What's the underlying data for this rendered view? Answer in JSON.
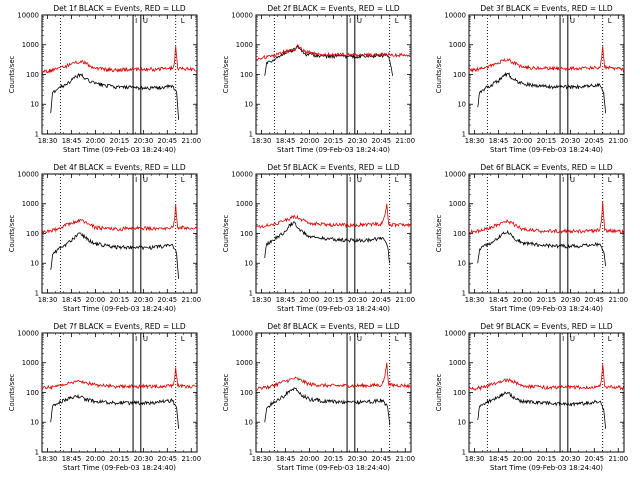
{
  "chart_data": [
    {
      "type": "line",
      "title": "Det 1f BLACK = Events, RED = LLD",
      "xlabel": "Start Time (09-Feb-03 18:24:40)",
      "ylabel": "Counts/sec",
      "y_scale": "log",
      "ylim": [
        1,
        10000
      ],
      "xlim": [
        "18:25",
        "21:05"
      ],
      "x_tick_labels": [
        "18:30",
        "18:45",
        "20:00",
        "20:15",
        "20:30",
        "20:45",
        "21:00"
      ],
      "y_tick_labels": [
        "1",
        "10",
        "100",
        "1000",
        "10000"
      ],
      "dotted_lines": [
        "18:44",
        "20:43"
      ],
      "solid_lines": [
        "19:59",
        "20:07"
      ],
      "top_markers": [
        "I",
        "U",
        "L"
      ],
      "series": [
        {
          "color": "#000000",
          "x": [
            "18:34",
            "18:36",
            "18:42",
            "18:48",
            "18:55",
            "19:00",
            "19:05",
            "19:10",
            "19:20",
            "19:40",
            "20:00",
            "20:20",
            "20:40",
            "20:42",
            "20:44",
            "20:46"
          ],
          "y": [
            5,
            25,
            35,
            45,
            60,
            85,
            100,
            70,
            50,
            38,
            36,
            35,
            40,
            30,
            25,
            3
          ]
        },
        {
          "color": "#e00000",
          "x": [
            "18:25",
            "18:40",
            "18:55",
            "19:05",
            "19:10",
            "19:20",
            "19:40",
            "20:00",
            "20:20",
            "20:40",
            "20:42",
            "20:43",
            "20:45",
            "21:00",
            "21:05"
          ],
          "y": [
            120,
            150,
            220,
            280,
            240,
            160,
            140,
            150,
            150,
            160,
            300,
            900,
            160,
            150,
            140
          ]
        }
      ]
    },
    {
      "type": "line",
      "title": "Det 2f BLACK = Events, RED = LLD",
      "xlabel": "Start Time (09-Feb-03 18:24:40)",
      "ylabel": "Counts/sec",
      "y_scale": "log",
      "ylim": [
        1,
        10000
      ],
      "xlim": [
        "18:25",
        "21:05"
      ],
      "x_tick_labels": [
        "18:30",
        "18:45",
        "20:00",
        "20:15",
        "20:30",
        "20:45",
        "21:00"
      ],
      "y_tick_labels": [
        "1",
        "10",
        "100",
        "1000",
        "10000"
      ],
      "dotted_lines": [
        "18:44",
        "20:43"
      ],
      "solid_lines": [
        "19:59",
        "20:07"
      ],
      "top_markers": [
        "I",
        "U",
        "L"
      ],
      "series": [
        {
          "color": "#000000",
          "x": [
            "18:34",
            "18:36",
            "18:42",
            "18:48",
            "18:55",
            "19:00",
            "19:05",
            "19:08",
            "19:15",
            "19:30",
            "20:00",
            "20:20",
            "20:40",
            "20:42",
            "20:46"
          ],
          "y": [
            90,
            250,
            300,
            400,
            550,
            600,
            700,
            900,
            500,
            420,
            400,
            420,
            450,
            400,
            90
          ]
        },
        {
          "color": "#e00000",
          "x": [
            "18:25",
            "18:40",
            "18:55",
            "19:05",
            "19:08",
            "19:15",
            "19:30",
            "20:00",
            "20:20",
            "20:40",
            "21:00",
            "21:05"
          ],
          "y": [
            350,
            400,
            600,
            650,
            1000,
            600,
            480,
            460,
            450,
            470,
            450,
            430
          ]
        }
      ]
    },
    {
      "type": "line",
      "title": "Det 3f BLACK = Events, RED = LLD",
      "xlabel": "Start Time (09-Feb-03 18:24:40)",
      "ylabel": "Counts/sec",
      "y_scale": "log",
      "ylim": [
        1,
        10000
      ],
      "xlim": [
        "18:25",
        "21:05"
      ],
      "x_tick_labels": [
        "18:30",
        "18:45",
        "20:00",
        "20:15",
        "20:30",
        "20:45",
        "21:00"
      ],
      "y_tick_labels": [
        "1",
        "10",
        "100",
        "1000",
        "10000"
      ],
      "dotted_lines": [
        "18:44",
        "20:43"
      ],
      "solid_lines": [
        "19:59",
        "20:07"
      ],
      "top_markers": [
        "I",
        "U",
        "L"
      ],
      "series": [
        {
          "color": "#000000",
          "x": [
            "18:34",
            "18:36",
            "18:42",
            "18:48",
            "18:55",
            "19:00",
            "19:05",
            "19:10",
            "19:20",
            "19:40",
            "20:00",
            "20:20",
            "20:40",
            "20:42",
            "20:44",
            "20:46"
          ],
          "y": [
            8,
            25,
            35,
            45,
            60,
            90,
            110,
            70,
            50,
            40,
            38,
            38,
            45,
            35,
            25,
            5
          ]
        },
        {
          "color": "#e00000",
          "x": [
            "18:25",
            "18:40",
            "18:55",
            "19:05",
            "19:10",
            "19:20",
            "19:40",
            "20:00",
            "20:20",
            "20:40",
            "20:42",
            "20:43",
            "20:45",
            "21:00",
            "21:05"
          ],
          "y": [
            140,
            160,
            250,
            330,
            260,
            180,
            160,
            160,
            160,
            170,
            350,
            900,
            170,
            160,
            150
          ]
        }
      ]
    },
    {
      "type": "line",
      "title": "Det 4f BLACK = Events, RED = LLD",
      "xlabel": "Start Time (09-Feb-03 18:24:40)",
      "ylabel": "Counts/sec",
      "y_scale": "log",
      "ylim": [
        1,
        10000
      ],
      "xlim": [
        "18:25",
        "21:05"
      ],
      "x_tick_labels": [
        "18:30",
        "18:45",
        "20:00",
        "20:15",
        "20:30",
        "20:45",
        "21:00"
      ],
      "y_tick_labels": [
        "1",
        "10",
        "100",
        "1000",
        "10000"
      ],
      "dotted_lines": [
        "18:44",
        "20:43"
      ],
      "solid_lines": [
        "19:59",
        "20:07"
      ],
      "top_markers": [
        "I",
        "U",
        "L"
      ],
      "series": [
        {
          "color": "#000000",
          "x": [
            "18:34",
            "18:36",
            "18:42",
            "18:48",
            "18:55",
            "19:00",
            "19:05",
            "19:10",
            "19:20",
            "19:40",
            "20:00",
            "20:20",
            "20:40",
            "20:42",
            "20:44",
            "20:46"
          ],
          "y": [
            6,
            20,
            30,
            40,
            55,
            85,
            100,
            70,
            45,
            35,
            34,
            34,
            40,
            30,
            20,
            3
          ]
        },
        {
          "color": "#e00000",
          "x": [
            "18:25",
            "18:40",
            "18:55",
            "19:05",
            "19:10",
            "19:20",
            "19:40",
            "20:00",
            "20:20",
            "20:40",
            "20:42",
            "20:43",
            "20:45",
            "21:00",
            "21:05"
          ],
          "y": [
            110,
            140,
            230,
            290,
            250,
            160,
            140,
            150,
            150,
            160,
            320,
            950,
            160,
            150,
            140
          ]
        }
      ]
    },
    {
      "type": "line",
      "title": "Det 5f BLACK = Events, RED = LLD",
      "xlabel": "Start Time (09-Feb-03 18:24:40)",
      "ylabel": "Counts/sec",
      "y_scale": "log",
      "ylim": [
        1,
        10000
      ],
      "xlim": [
        "18:25",
        "21:05"
      ],
      "x_tick_labels": [
        "18:30",
        "18:45",
        "20:00",
        "20:15",
        "20:30",
        "20:45",
        "21:00"
      ],
      "y_tick_labels": [
        "1",
        "10",
        "100",
        "1000",
        "10000"
      ],
      "dotted_lines": [
        "18:44",
        "20:43"
      ],
      "solid_lines": [
        "19:59",
        "20:07"
      ],
      "top_markers": [
        "I",
        "U",
        "L"
      ],
      "series": [
        {
          "color": "#000000",
          "x": [
            "18:34",
            "18:36",
            "18:42",
            "18:48",
            "18:55",
            "19:00",
            "19:05",
            "19:10",
            "19:20",
            "19:40",
            "20:00",
            "20:20",
            "20:35",
            "20:39",
            "20:41",
            "20:43"
          ],
          "y": [
            15,
            45,
            60,
            80,
            120,
            200,
            230,
            130,
            80,
            65,
            60,
            60,
            70,
            50,
            35,
            10
          ]
        },
        {
          "color": "#e00000",
          "x": [
            "18:25",
            "18:40",
            "18:55",
            "19:05",
            "19:10",
            "19:20",
            "19:40",
            "20:00",
            "20:20",
            "20:35",
            "20:38",
            "20:40",
            "20:42",
            "21:00",
            "21:05"
          ],
          "y": [
            170,
            190,
            280,
            380,
            320,
            220,
            200,
            190,
            200,
            210,
            400,
            1000,
            200,
            190,
            180
          ]
        }
      ]
    },
    {
      "type": "line",
      "title": "Det 6f BLACK = Events, RED = LLD",
      "xlabel": "Start Time (09-Feb-03 18:24:40)",
      "ylabel": "Counts/sec",
      "y_scale": "log",
      "ylim": [
        1,
        10000
      ],
      "xlim": [
        "18:25",
        "21:05"
      ],
      "x_tick_labels": [
        "18:30",
        "18:45",
        "20:00",
        "20:15",
        "20:30",
        "20:45",
        "21:00"
      ],
      "y_tick_labels": [
        "1",
        "10",
        "100",
        "1000",
        "10000"
      ],
      "dotted_lines": [
        "18:44",
        "20:43"
      ],
      "solid_lines": [
        "19:59",
        "20:07"
      ],
      "top_markers": [
        "I",
        "U",
        "L"
      ],
      "series": [
        {
          "color": "#000000",
          "x": [
            "18:34",
            "18:36",
            "18:42",
            "18:48",
            "18:55",
            "19:00",
            "19:05",
            "19:10",
            "19:20",
            "19:40",
            "20:00",
            "20:20",
            "20:40",
            "20:42",
            "20:44",
            "20:46"
          ],
          "y": [
            10,
            30,
            40,
            50,
            70,
            100,
            120,
            75,
            50,
            40,
            38,
            38,
            45,
            35,
            25,
            8
          ]
        },
        {
          "color": "#e00000",
          "x": [
            "18:25",
            "18:40",
            "18:55",
            "19:05",
            "19:10",
            "19:20",
            "19:40",
            "20:00",
            "20:20",
            "20:40",
            "20:42",
            "20:43",
            "20:45",
            "21:00",
            "21:05"
          ],
          "y": [
            110,
            130,
            200,
            260,
            220,
            140,
            120,
            120,
            120,
            130,
            350,
            1200,
            130,
            120,
            110
          ]
        }
      ]
    },
    {
      "type": "line",
      "title": "Det 7f BLACK = Events, RED = LLD",
      "xlabel": "Start Time (09-Feb-03 18:24:40)",
      "ylabel": "Counts/sec",
      "y_scale": "log",
      "ylim": [
        1,
        10000
      ],
      "xlim": [
        "18:25",
        "21:05"
      ],
      "x_tick_labels": [
        "18:30",
        "18:45",
        "20:00",
        "20:15",
        "20:30",
        "20:45",
        "21:00"
      ],
      "y_tick_labels": [
        "1",
        "10",
        "100",
        "1000",
        "10000"
      ],
      "dotted_lines": [
        "18:44",
        "20:43"
      ],
      "solid_lines": [
        "19:59",
        "20:07"
      ],
      "top_markers": [
        "I",
        "U",
        "L"
      ],
      "series": [
        {
          "color": "#000000",
          "x": [
            "18:34",
            "18:36",
            "18:42",
            "18:48",
            "18:55",
            "19:00",
            "19:05",
            "19:10",
            "19:20",
            "19:40",
            "20:00",
            "20:20",
            "20:40",
            "20:42",
            "20:44",
            "20:46"
          ],
          "y": [
            10,
            35,
            45,
            55,
            65,
            75,
            70,
            60,
            50,
            45,
            45,
            45,
            55,
            40,
            30,
            6
          ]
        },
        {
          "color": "#e00000",
          "x": [
            "18:25",
            "18:40",
            "18:55",
            "19:05",
            "19:10",
            "19:20",
            "19:40",
            "20:00",
            "20:20",
            "20:40",
            "20:42",
            "20:43",
            "20:45",
            "21:00",
            "21:05"
          ],
          "y": [
            140,
            160,
            220,
            240,
            220,
            180,
            160,
            160,
            160,
            170,
            300,
            700,
            170,
            160,
            150
          ]
        }
      ]
    },
    {
      "type": "line",
      "title": "Det 8f BLACK = Events, RED = LLD",
      "xlabel": "Start Time (09-Feb-03 18:24:40)",
      "ylabel": "Counts/sec",
      "y_scale": "log",
      "ylim": [
        1,
        10000
      ],
      "xlim": [
        "18:25",
        "21:05"
      ],
      "x_tick_labels": [
        "18:30",
        "18:45",
        "20:00",
        "20:15",
        "20:30",
        "20:45",
        "21:00"
      ],
      "y_tick_labels": [
        "1",
        "10",
        "100",
        "1000",
        "10000"
      ],
      "dotted_lines": [
        "18:44",
        "20:43"
      ],
      "solid_lines": [
        "19:59",
        "20:07"
      ],
      "top_markers": [
        "I",
        "U",
        "L"
      ],
      "series": [
        {
          "color": "#000000",
          "x": [
            "18:34",
            "18:36",
            "18:42",
            "18:48",
            "18:55",
            "19:00",
            "19:05",
            "19:10",
            "19:20",
            "19:40",
            "20:00",
            "20:20",
            "20:35",
            "20:39",
            "20:41",
            "20:43"
          ],
          "y": [
            10,
            30,
            45,
            60,
            80,
            120,
            140,
            90,
            60,
            50,
            48,
            48,
            55,
            40,
            30,
            8
          ]
        },
        {
          "color": "#e00000",
          "x": [
            "18:25",
            "18:40",
            "18:55",
            "19:05",
            "19:10",
            "19:20",
            "19:40",
            "20:00",
            "20:20",
            "20:35",
            "20:38",
            "20:40",
            "20:42",
            "21:00",
            "21:05"
          ],
          "y": [
            130,
            160,
            240,
            300,
            270,
            190,
            170,
            170,
            170,
            180,
            350,
            1000,
            180,
            170,
            160
          ]
        }
      ]
    },
    {
      "type": "line",
      "title": "Det 9f BLACK = Events, RED = LLD",
      "xlabel": "Start Time (09-Feb-03 18:24:40)",
      "ylabel": "Counts/sec",
      "y_scale": "log",
      "ylim": [
        1,
        10000
      ],
      "xlim": [
        "18:25",
        "21:05"
      ],
      "x_tick_labels": [
        "18:30",
        "18:45",
        "20:00",
        "20:15",
        "20:30",
        "20:45",
        "21:00"
      ],
      "y_tick_labels": [
        "1",
        "10",
        "100",
        "1000",
        "10000"
      ],
      "dotted_lines": [
        "18:44",
        "20:43"
      ],
      "solid_lines": [
        "19:59",
        "20:07"
      ],
      "top_markers": [
        "I",
        "U",
        "L"
      ],
      "series": [
        {
          "color": "#000000",
          "x": [
            "18:34",
            "18:36",
            "18:42",
            "18:48",
            "18:55",
            "19:00",
            "19:05",
            "19:10",
            "19:20",
            "19:40",
            "20:00",
            "20:20",
            "20:40",
            "20:42",
            "20:44",
            "20:46"
          ],
          "y": [
            12,
            35,
            45,
            55,
            70,
            90,
            100,
            70,
            50,
            45,
            42,
            42,
            50,
            38,
            28,
            6
          ]
        },
        {
          "color": "#e00000",
          "x": [
            "18:25",
            "18:40",
            "18:55",
            "19:05",
            "19:10",
            "19:20",
            "19:40",
            "20:00",
            "20:20",
            "20:40",
            "20:42",
            "20:43",
            "20:45",
            "21:00",
            "21:05"
          ],
          "y": [
            130,
            150,
            220,
            270,
            240,
            170,
            150,
            150,
            150,
            160,
            320,
            900,
            160,
            150,
            140
          ]
        }
      ]
    }
  ]
}
